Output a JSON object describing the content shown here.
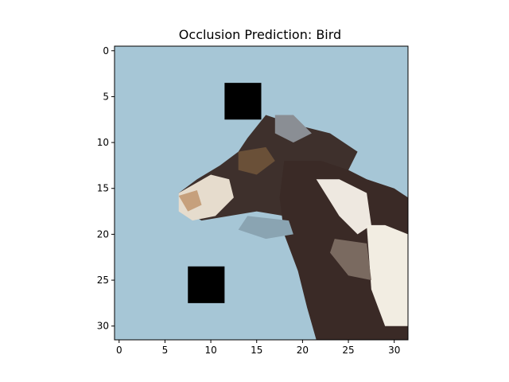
{
  "chart_data": {
    "type": "heatmap",
    "title": "Occlusion Prediction: Bird",
    "xlabel": "",
    "ylabel": "",
    "grid_size": [
      32,
      32
    ],
    "xlim": [
      -0.5,
      31.5
    ],
    "ylim": [
      31.5,
      -0.5
    ],
    "y_inverted": true,
    "xticks": [
      0,
      5,
      10,
      15,
      20,
      25,
      30
    ],
    "yticks": [
      0,
      5,
      10,
      15,
      20,
      25,
      30
    ],
    "grid": false,
    "background_color": "#a6c6d6",
    "occlusion_patches": [
      {
        "x": [
          12,
          15
        ],
        "y": [
          4,
          7
        ],
        "color": "#000000"
      },
      {
        "x": [
          8,
          11
        ],
        "y": [
          24,
          27
        ],
        "color": "#000000"
      }
    ],
    "image_regions": [
      {
        "name": "head",
        "polygon": [
          [
            16,
            7
          ],
          [
            19,
            8
          ],
          [
            23,
            9
          ],
          [
            26,
            11
          ],
          [
            24,
            15
          ],
          [
            21,
            18
          ],
          [
            18,
            18
          ],
          [
            15,
            17.5
          ],
          [
            12,
            18
          ],
          [
            9,
            18.5
          ],
          [
            7,
            17.5
          ],
          [
            6.5,
            15.5
          ],
          [
            8.5,
            14
          ],
          [
            11,
            12.5
          ],
          [
            13,
            11
          ],
          [
            14,
            9.5
          ]
        ],
        "color": "#3e302c"
      },
      {
        "name": "neck",
        "polygon": [
          [
            18,
            12
          ],
          [
            22,
            12
          ],
          [
            25,
            13
          ],
          [
            27,
            14
          ],
          [
            30,
            15
          ],
          [
            31.5,
            16
          ],
          [
            31.5,
            31.5
          ],
          [
            21.5,
            31.5
          ],
          [
            20.5,
            28
          ],
          [
            19.5,
            24
          ],
          [
            18,
            20
          ],
          [
            17.5,
            16
          ]
        ],
        "color": "#3a2a26"
      },
      {
        "name": "beak",
        "polygon": [
          [
            6.5,
            15.5
          ],
          [
            10,
            13.5
          ],
          [
            12,
            14
          ],
          [
            12.5,
            16
          ],
          [
            10.5,
            18
          ],
          [
            8,
            18.5
          ],
          [
            6.5,
            17.5
          ]
        ],
        "color": "#e6dccd"
      },
      {
        "name": "beak-tip",
        "polygon": [
          [
            6.5,
            15.8
          ],
          [
            8.5,
            15.2
          ],
          [
            9,
            16.8
          ],
          [
            7.5,
            17.5
          ]
        ],
        "color": "#c6a07c"
      },
      {
        "name": "white-stripe-1",
        "polygon": [
          [
            21.5,
            14
          ],
          [
            24,
            14
          ],
          [
            27,
            15.5
          ],
          [
            27.5,
            19
          ],
          [
            26,
            20
          ],
          [
            24,
            18
          ]
        ],
        "color": "#eee8e0"
      },
      {
        "name": "white-stripe-2",
        "polygon": [
          [
            27,
            19
          ],
          [
            29,
            19
          ],
          [
            31.5,
            20
          ],
          [
            31.5,
            30
          ],
          [
            29,
            30
          ],
          [
            27.5,
            26
          ]
        ],
        "color": "#f2ede2"
      },
      {
        "name": "brown-patch",
        "polygon": [
          [
            13,
            11
          ],
          [
            16,
            10.5
          ],
          [
            17,
            12
          ],
          [
            15,
            13.5
          ],
          [
            13,
            13
          ]
        ],
        "color": "#6a5038"
      },
      {
        "name": "mid-feathers",
        "polygon": [
          [
            23.5,
            20.5
          ],
          [
            27,
            21
          ],
          [
            27.5,
            25
          ],
          [
            25,
            24.5
          ],
          [
            23,
            22
          ]
        ],
        "color": "#7a6a60"
      },
      {
        "name": "head-grey",
        "polygon": [
          [
            17,
            7
          ],
          [
            19,
            7
          ],
          [
            21,
            9
          ],
          [
            19,
            10
          ],
          [
            17,
            9
          ]
        ],
        "color": "#8a8e94"
      },
      {
        "name": "throat-light",
        "polygon": [
          [
            14,
            18
          ],
          [
            18.5,
            18.5
          ],
          [
            19,
            20
          ],
          [
            16,
            20.5
          ],
          [
            13,
            19.5
          ]
        ],
        "color": "#8aa4b2"
      }
    ]
  }
}
